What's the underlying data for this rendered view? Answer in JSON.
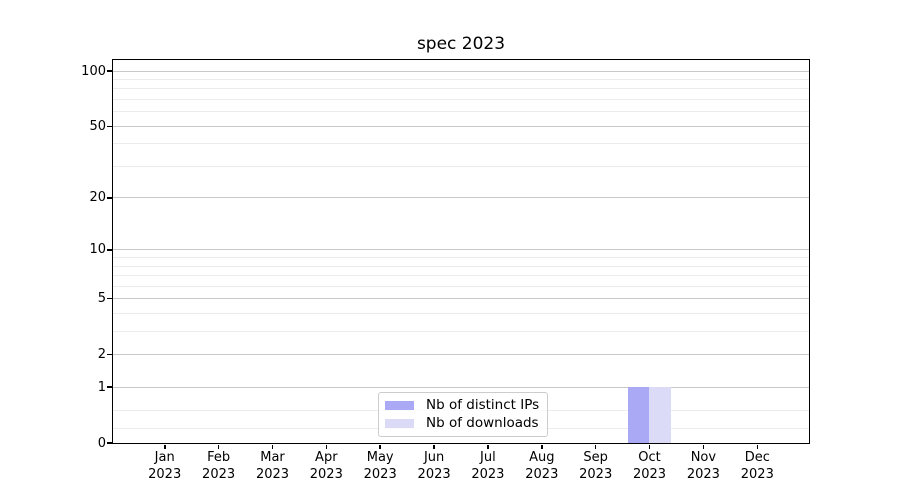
{
  "chart_data": {
    "type": "bar",
    "title": "spec 2023",
    "categories": [
      [
        "Jan",
        "2023"
      ],
      [
        "Feb",
        "2023"
      ],
      [
        "Mar",
        "2023"
      ],
      [
        "Apr",
        "2023"
      ],
      [
        "May",
        "2023"
      ],
      [
        "Jun",
        "2023"
      ],
      [
        "Jul",
        "2023"
      ],
      [
        "Aug",
        "2023"
      ],
      [
        "Sep",
        "2023"
      ],
      [
        "Oct",
        "2023"
      ],
      [
        "Nov",
        "2023"
      ],
      [
        "Dec",
        "2023"
      ]
    ],
    "series": [
      {
        "name": "Nb of distinct IPs",
        "color": "#a9a9f6",
        "values": [
          0,
          0,
          0,
          0,
          0,
          0,
          0,
          0,
          0,
          1,
          0,
          0
        ]
      },
      {
        "name": "Nb of downloads",
        "color": "#dbdbf8",
        "values": [
          0,
          0,
          0,
          0,
          0,
          0,
          0,
          0,
          0,
          1,
          0,
          0
        ]
      }
    ],
    "bar_width_fraction": 0.4,
    "y_axis": {
      "scale": "log1p",
      "major_ticks": [
        0,
        1,
        2,
        5,
        10,
        20,
        50,
        100
      ],
      "minor_gridlines": [
        0.2,
        0.5,
        3,
        4,
        6,
        7,
        8,
        9,
        30,
        40,
        60,
        70,
        80,
        90
      ],
      "ylim": [
        0,
        115
      ]
    },
    "legend": {
      "position": "lower center"
    },
    "colors": {
      "grid_major": "#c8c8c8",
      "grid_minor": "#ececec",
      "axis": "#000000",
      "legend_border": "#cccccc"
    },
    "grid": true
  }
}
